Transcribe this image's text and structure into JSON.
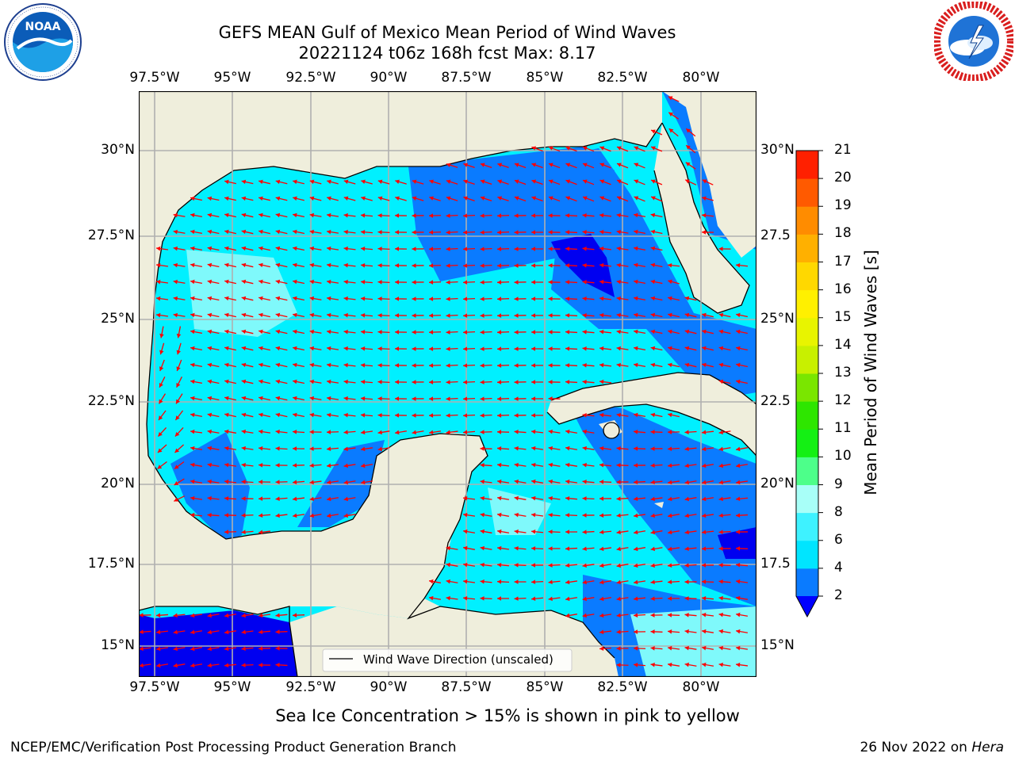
{
  "header": {
    "title_line1": "GEFS MEAN Gulf of Mexico Mean Period of Wind Waves",
    "title_line2": "20221124 t06z 168h fcst   Max: 8.17"
  },
  "logos": {
    "noaa_text": "NOAA",
    "noaa_ring_text": "NATIONAL OCEANIC AND ATMOSPHERIC ADMINISTRATION · U.S. DEPARTMENT OF COMMERCE",
    "nws_ring_text": "NATIONAL WEATHER SERVICE"
  },
  "map": {
    "lon_labels": [
      "97.5°W",
      "95°W",
      "92.5°W",
      "90°W",
      "87.5°W",
      "85°W",
      "82.5°W",
      "80°W"
    ],
    "lat_labels_left": [
      "30°N",
      "27.5°N",
      "25°N",
      "22.5°N",
      "20°N",
      "17.5°N",
      "15°N"
    ],
    "lat_labels_right": [
      "30°N",
      "27.5",
      "25°N",
      "22.5",
      "20°N",
      "17.5",
      "15°N"
    ],
    "legend_label": "Wind Wave Direction (unscaled)"
  },
  "colorbar": {
    "label": "Mean Period of Wind Waves [s]",
    "ticks": [
      "2",
      "4",
      "6",
      "8",
      "9",
      "10",
      "11",
      "12",
      "13",
      "14",
      "15",
      "16",
      "17",
      "18",
      "19",
      "20",
      "21"
    ],
    "colors": [
      "#0a7bff",
      "#00e5ff",
      "#3ef2ff",
      "#a8fff8",
      "#4dff8a",
      "#14f014",
      "#2ee600",
      "#7ae600",
      "#c8f000",
      "#e8f400",
      "#fff000",
      "#ffd800",
      "#ffb000",
      "#ff8c00",
      "#ff5a00",
      "#ff2000"
    ],
    "extend_color": "#0000ff"
  },
  "footer": {
    "note": "Sea Ice Concentration > 15% is shown in pink to yellow",
    "credit": "NCEP/EMC/Verification Post Processing Product Generation Branch",
    "date": "26 Nov 2022 on",
    "host": "Hera"
  },
  "colors": {
    "land": "#efeedc",
    "wave_low": "#0a7bff",
    "wave_mid": "#00f0ff",
    "wave_pale": "#7ff9fb",
    "wave_deep": "#0000f0",
    "arrow": "#ff0000",
    "grid": "#b0b0b0"
  }
}
